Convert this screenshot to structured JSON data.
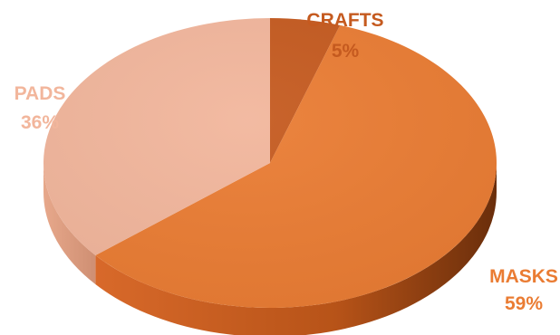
{
  "chart_data": {
    "type": "pie",
    "style": "3d",
    "slices": [
      {
        "label": "CRAFTS",
        "value": 5,
        "display": "5%",
        "color": "#c55a1f"
      },
      {
        "label": "MASKS",
        "value": 59,
        "display": "59%",
        "color": "#ea7c33"
      },
      {
        "label": "PADS",
        "value": 36,
        "display": "36%",
        "color": "#f2b69c"
      }
    ],
    "legend": "none"
  }
}
